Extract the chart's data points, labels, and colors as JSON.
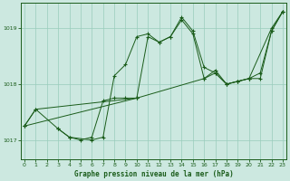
{
  "title": "Graphe pression niveau de la mer (hPa)",
  "background_color": "#cce8e0",
  "grid_color": "#99ccbb",
  "line_color": "#1a5c1a",
  "ylim": [
    1016.65,
    1019.45
  ],
  "xlim": [
    -0.3,
    23.3
  ],
  "yticks": [
    1017,
    1018,
    1019
  ],
  "xticks": [
    0,
    1,
    2,
    3,
    4,
    5,
    6,
    7,
    8,
    9,
    10,
    11,
    12,
    13,
    14,
    15,
    16,
    17,
    18,
    19,
    20,
    21,
    22,
    23
  ],
  "series": [
    {
      "points": [
        [
          0,
          1017.25
        ],
        [
          1,
          1017.55
        ],
        [
          3,
          1017.2
        ],
        [
          4,
          1017.05
        ],
        [
          5,
          1017.0
        ],
        [
          6,
          1017.05
        ],
        [
          7,
          1017.7
        ],
        [
          8,
          1017.75
        ],
        [
          9,
          1017.75
        ],
        [
          10,
          1017.75
        ]
      ],
      "gap_segments": true
    },
    {
      "points": [
        [
          3,
          1017.2
        ],
        [
          4,
          1017.05
        ],
        [
          6,
          1017.0
        ],
        [
          7,
          1017.05
        ],
        [
          8,
          1018.15
        ],
        [
          9,
          1018.35
        ],
        [
          10,
          1018.85
        ],
        [
          11,
          1018.9
        ],
        [
          12,
          1018.75
        ],
        [
          13,
          1018.85
        ],
        [
          14,
          1019.15
        ],
        [
          15,
          1018.9
        ],
        [
          16,
          1018.1
        ],
        [
          17,
          1018.2
        ],
        [
          18,
          1018.0
        ],
        [
          19,
          1018.05
        ],
        [
          20,
          1018.1
        ],
        [
          21,
          1018.1
        ],
        [
          22,
          1018.95
        ],
        [
          23,
          1019.3
        ]
      ],
      "gap_segments": false
    },
    {
      "points": [
        [
          0,
          1017.25
        ],
        [
          10,
          1017.75
        ],
        [
          11,
          1018.85
        ],
        [
          12,
          1018.75
        ],
        [
          13,
          1018.85
        ],
        [
          14,
          1019.2
        ],
        [
          15,
          1018.95
        ],
        [
          16,
          1018.3
        ],
        [
          17,
          1018.2
        ],
        [
          18,
          1018.0
        ],
        [
          19,
          1018.05
        ],
        [
          20,
          1018.1
        ],
        [
          22,
          1019.0
        ],
        [
          23,
          1019.3
        ]
      ],
      "gap_segments": false
    },
    {
      "points": [
        [
          0,
          1017.25
        ],
        [
          1,
          1017.55
        ],
        [
          10,
          1017.75
        ],
        [
          16,
          1018.1
        ],
        [
          17,
          1018.25
        ],
        [
          18,
          1018.0
        ],
        [
          19,
          1018.05
        ],
        [
          20,
          1018.1
        ],
        [
          21,
          1018.2
        ],
        [
          22,
          1018.95
        ],
        [
          23,
          1019.3
        ]
      ],
      "gap_segments": false
    }
  ]
}
